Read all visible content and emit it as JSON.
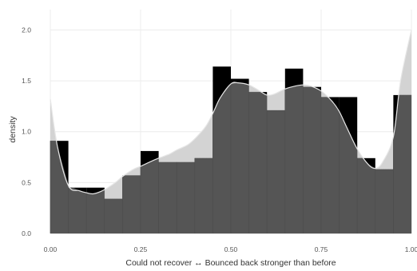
{
  "chart_data": {
    "type": "bar",
    "xlabel": "Could not recover ↔ Bounced back stronger than before",
    "ylabel": "density",
    "xlim": [
      0,
      1
    ],
    "ylim": [
      0,
      2.2
    ],
    "xticks": [
      0,
      0.25,
      0.5,
      0.75,
      1
    ],
    "xtick_labels": [
      "0.00",
      "0.25",
      "0.50",
      "0.75",
      "1.00"
    ],
    "yticks": [
      0,
      0.5,
      1,
      1.5,
      2
    ],
    "ytick_labels": [
      "0.0",
      "0.5",
      "1.0",
      "1.5",
      "2.0"
    ],
    "grid": true,
    "histogram": {
      "bin_width": 0.05,
      "bin_starts": [
        0.0,
        0.05,
        0.1,
        0.15,
        0.2,
        0.25,
        0.3,
        0.35,
        0.4,
        0.45,
        0.5,
        0.55,
        0.6,
        0.65,
        0.7,
        0.75,
        0.8,
        0.85,
        0.9,
        0.95
      ],
      "values": [
        0.91,
        0.45,
        0.45,
        0.34,
        0.57,
        0.81,
        0.7,
        0.7,
        0.74,
        1.64,
        1.52,
        1.39,
        1.21,
        1.62,
        1.44,
        1.34,
        1.34,
        0.74,
        0.63,
        1.36
      ]
    },
    "density_curve": {
      "x": [
        0.0,
        0.02,
        0.05,
        0.08,
        0.1,
        0.12,
        0.15,
        0.18,
        0.2,
        0.23,
        0.25,
        0.28,
        0.3,
        0.33,
        0.35,
        0.38,
        0.4,
        0.43,
        0.45,
        0.47,
        0.5,
        0.52,
        0.55,
        0.58,
        0.6,
        0.62,
        0.65,
        0.68,
        0.7,
        0.72,
        0.75,
        0.78,
        0.8,
        0.82,
        0.85,
        0.88,
        0.9,
        0.92,
        0.95,
        0.97,
        1.0
      ],
      "y": [
        1.32,
        0.85,
        0.47,
        0.42,
        0.4,
        0.39,
        0.43,
        0.5,
        0.56,
        0.63,
        0.66,
        0.71,
        0.74,
        0.78,
        0.82,
        0.87,
        0.93,
        1.05,
        1.18,
        1.33,
        1.47,
        1.48,
        1.46,
        1.4,
        1.36,
        1.37,
        1.42,
        1.45,
        1.46,
        1.45,
        1.4,
        1.3,
        1.2,
        1.05,
        0.83,
        0.68,
        0.64,
        0.7,
        0.95,
        1.5,
        2.0
      ]
    },
    "colors": {
      "bar_fill": "#555555",
      "excess_fill": "#000000",
      "density_fill": "#d3d3d3",
      "density_line": "#e6e6e6",
      "grid": "#ececec"
    }
  }
}
